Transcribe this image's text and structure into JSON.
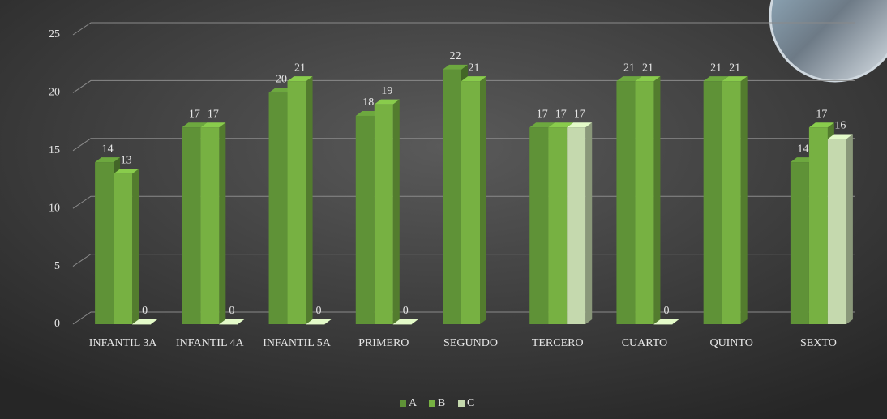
{
  "chart_data": {
    "type": "bar3d",
    "categories": [
      "INFANTIL 3A",
      "INFANTIL 4A",
      "INFANTIL 5A",
      "PRIMERO",
      "SEGUNDO",
      "TERCERO",
      "CUARTO",
      "QUINTO",
      "SEXTO"
    ],
    "series": [
      {
        "name": "A",
        "color": "#5f9237",
        "values": [
          14,
          17,
          20,
          18,
          22,
          17,
          21,
          21,
          14
        ]
      },
      {
        "name": "B",
        "color": "#77b142",
        "values": [
          13,
          17,
          21,
          19,
          21,
          17,
          21,
          21,
          17
        ]
      },
      {
        "name": "C",
        "color": "#c5d9ae",
        "values": [
          0,
          0,
          0,
          0,
          null,
          17,
          0,
          null,
          16
        ]
      }
    ],
    "ylim": [
      0,
      25
    ],
    "yticks": [
      0,
      5,
      10,
      15,
      20,
      25
    ],
    "grid": true,
    "legend": "bottom"
  }
}
